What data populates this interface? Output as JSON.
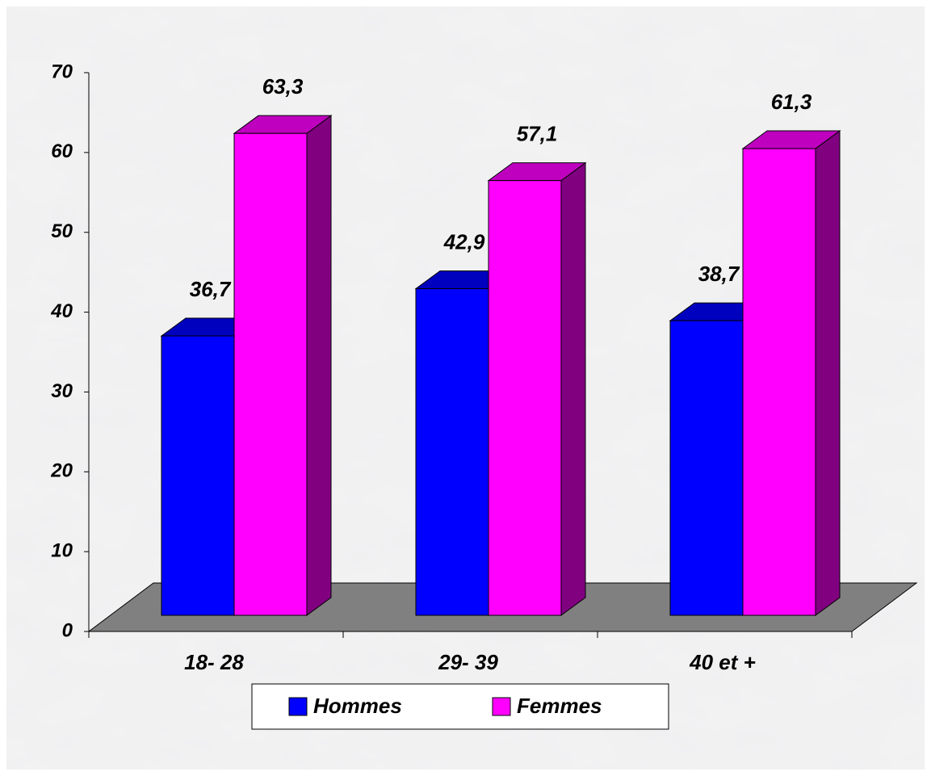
{
  "chart_data": {
    "type": "bar3d",
    "categories": [
      "18- 28",
      "29- 39",
      "40 et +"
    ],
    "series": [
      {
        "name": "Hommes",
        "color": "#0000ff",
        "values": [
          36.7,
          42.9,
          38.7
        ],
        "value_labels": [
          "36,7",
          "42,9",
          "38,7"
        ]
      },
      {
        "name": "Femmes",
        "color": "#ff00ff",
        "values": [
          63.3,
          57.1,
          61.3
        ],
        "value_labels": [
          "63,3",
          "57,1",
          "61,3"
        ]
      }
    ],
    "ylim": [
      0,
      70
    ],
    "yticks": [
      0,
      10,
      20,
      30,
      40,
      50,
      60,
      70
    ],
    "legend": "bottom"
  }
}
